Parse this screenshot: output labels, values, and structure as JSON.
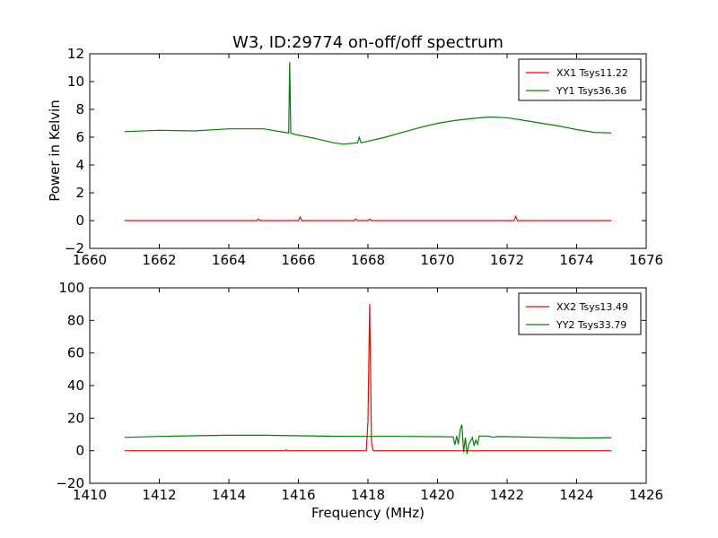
{
  "title": "W3, ID:29774 on-off/off spectrum",
  "ylabel": "Power in Kelvin",
  "xlabel": "Frequency (MHz)",
  "chart_data": [
    {
      "type": "line",
      "xlim": [
        1660,
        1676
      ],
      "ylim": [
        -2,
        12
      ],
      "xticks": [
        1660,
        1662,
        1664,
        1666,
        1668,
        1670,
        1672,
        1674,
        1676
      ],
      "yticks": [
        -2,
        0,
        2,
        4,
        6,
        8,
        10,
        12
      ],
      "legend_position": "top-right",
      "series": [
        {
          "name": "XX1 Tsys11.22",
          "color": "#ff0000",
          "x": [
            1661.0,
            1663.0,
            1664.8,
            1664.85,
            1664.9,
            1666.0,
            1666.05,
            1666.1,
            1667.6,
            1667.65,
            1667.7,
            1668.0,
            1668.05,
            1668.1,
            1669.0,
            1670.0,
            1672.2,
            1672.25,
            1672.3,
            1675.0
          ],
          "y": [
            0.0,
            0.0,
            0.0,
            0.1,
            0.0,
            0.0,
            0.25,
            0.0,
            0.0,
            0.12,
            0.0,
            0.0,
            0.1,
            0.0,
            0.0,
            0.0,
            0.0,
            0.3,
            0.0,
            0.0
          ]
        },
        {
          "name": "YY1 Tsys36.36",
          "color": "#008000",
          "x": [
            1661.0,
            1662.0,
            1663.0,
            1664.0,
            1665.0,
            1665.6,
            1665.72,
            1665.75,
            1665.78,
            1665.9,
            1666.5,
            1667.0,
            1667.3,
            1667.7,
            1667.75,
            1667.8,
            1668.0,
            1668.5,
            1669.0,
            1669.5,
            1670.0,
            1670.5,
            1671.0,
            1671.5,
            1672.0,
            1672.5,
            1673.0,
            1673.5,
            1674.0,
            1674.5,
            1675.0
          ],
          "y": [
            6.4,
            6.5,
            6.45,
            6.6,
            6.6,
            6.35,
            6.3,
            11.4,
            6.3,
            6.2,
            5.9,
            5.6,
            5.5,
            5.6,
            6.0,
            5.6,
            5.7,
            6.0,
            6.35,
            6.7,
            7.0,
            7.2,
            7.35,
            7.45,
            7.4,
            7.2,
            7.0,
            6.8,
            6.55,
            6.35,
            6.3
          ]
        }
      ]
    },
    {
      "type": "line",
      "xlim": [
        1410,
        1426
      ],
      "ylim": [
        -20,
        100
      ],
      "xticks": [
        1410,
        1412,
        1414,
        1416,
        1418,
        1420,
        1422,
        1424,
        1426
      ],
      "yticks": [
        -20,
        0,
        20,
        40,
        60,
        80,
        100
      ],
      "legend_position": "top-right",
      "series": [
        {
          "name": "XX2 Tsys13.49",
          "color": "#ff0000",
          "x": [
            1411.0,
            1415.6,
            1415.65,
            1415.7,
            1417.95,
            1418.0,
            1418.05,
            1418.1,
            1418.15,
            1425.0
          ],
          "y": [
            0.0,
            0.0,
            0.5,
            0.0,
            0.0,
            18.0,
            90.0,
            5.0,
            0.0,
            0.0
          ],
          "peak_label_shown": false
        },
        {
          "name": "YY2 Tsys33.79",
          "color": "#008000",
          "x": [
            1411.0,
            1412.0,
            1413.0,
            1414.0,
            1415.0,
            1416.0,
            1417.0,
            1418.0,
            1419.0,
            1420.0,
            1420.45,
            1420.5,
            1420.55,
            1420.6,
            1420.65,
            1420.7,
            1420.75,
            1420.8,
            1420.85,
            1420.9,
            1421.0,
            1421.05,
            1421.1,
            1421.15,
            1421.2,
            1421.4,
            1421.5,
            1421.6,
            1421.7,
            1422.0,
            1423.0,
            1424.0,
            1425.0
          ],
          "y": [
            8.2,
            8.8,
            9.2,
            9.5,
            9.5,
            9.2,
            8.9,
            8.8,
            8.8,
            8.6,
            8.5,
            3.5,
            9.0,
            4.0,
            13.0,
            16.0,
            -1.0,
            8.0,
            -2.0,
            4.0,
            8.0,
            3.0,
            6.5,
            4.0,
            9.0,
            9.0,
            8.8,
            8.2,
            8.7,
            8.6,
            8.2,
            7.8,
            8.0
          ]
        }
      ]
    }
  ]
}
